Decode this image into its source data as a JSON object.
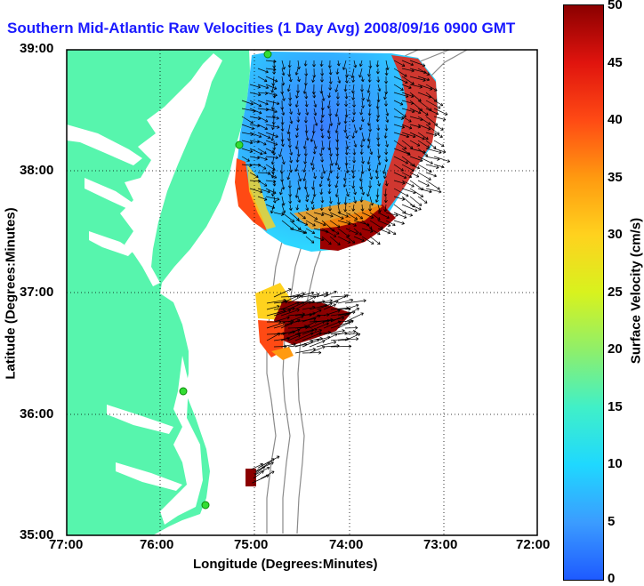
{
  "title": "Southern Mid-Atlantic Raw Velocities (1 Day Avg) 2008/09/16 0900 GMT",
  "xaxis": {
    "label": "Longitude (Degrees:Minutes)",
    "ticks": [
      "77:00",
      "76:00",
      "75:00",
      "74:00",
      "73:00",
      "72:00"
    ]
  },
  "yaxis": {
    "label": "Latitude (Degrees:Minutes)",
    "ticks": [
      "39:00",
      "38:00",
      "37:00",
      "36:00",
      "35:00"
    ]
  },
  "colorbar": {
    "label": "Surface Velocity (cm/s)",
    "ticks": [
      "50",
      "45",
      "40",
      "35",
      "30",
      "25",
      "20",
      "15",
      "10",
      "5",
      "0"
    ],
    "range": [
      0,
      50
    ]
  },
  "colors": {
    "land": "#57f5ad",
    "water": "#ffffff",
    "title": "#1a1aff",
    "contour": "#8a8a8a",
    "station": "#33dd33"
  },
  "velocity_field": {
    "units": "cm/s",
    "regions": [
      {
        "name": "northern coverage",
        "speed_range": [
          3,
          50
        ]
      },
      {
        "name": "central patch",
        "speed_range": [
          20,
          50
        ]
      },
      {
        "name": "southern patch",
        "speed_range": [
          48,
          50
        ]
      }
    ]
  }
}
